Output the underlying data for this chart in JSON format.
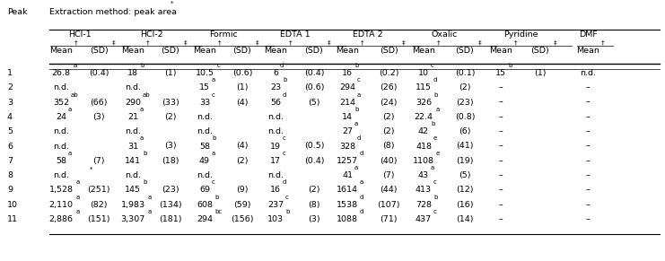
{
  "title": "Extraction method: peak area",
  "title_star": "*",
  "peak_label": "Peak",
  "methods": [
    "HCl-1",
    "HCl-2",
    "Formic",
    "EDTA 1",
    "EDTA 2",
    "Oxalic",
    "Pyridine",
    "DMF"
  ],
  "col_headers_main": [
    "Mean",
    "(SD)",
    "Mean",
    "(SD)",
    "Mean",
    "(SD)",
    "Mean",
    "(SD)",
    "Mean",
    "(SD)",
    "Mean",
    "(SD)",
    "Mean",
    "(SD)",
    "Mean"
  ],
  "col_headers_sup": [
    "†",
    "‡",
    "†",
    "‡",
    "†",
    "‡",
    "†",
    "‡",
    "†",
    "‡",
    "†",
    "‡",
    "†",
    "‡",
    "†"
  ],
  "rows": [
    [
      "1",
      "26.8",
      "a",
      "(0.4)",
      "18",
      "b",
      "(1)",
      "10.5",
      "c",
      "(0.6)",
      "6",
      "d",
      "(0.4)",
      "16",
      "b",
      "(0.2)",
      "10",
      "c",
      "(0.1)",
      "15",
      "b",
      "(1)",
      "n.d.",
      ""
    ],
    [
      "2",
      "n.d.",
      "",
      "",
      "n.d.",
      "",
      "",
      "15",
      "a",
      "(1)",
      "23",
      "b",
      "(0.6)",
      "294",
      "c",
      "(26)",
      "115",
      "d",
      "(2)",
      "–",
      "",
      "",
      "–",
      ""
    ],
    [
      "3",
      "352",
      "ab",
      "(66)",
      "290",
      "ab",
      "(33)",
      "33",
      "c",
      "(4)",
      "56",
      "d",
      "(5)",
      "214",
      "a",
      "(24)",
      "326",
      "b",
      "(23)",
      "–",
      "",
      "",
      "–",
      ""
    ],
    [
      "4",
      "24",
      "a",
      "(3)",
      "21",
      "a",
      "(2)",
      "n.d.",
      "",
      "",
      "n.d.",
      "",
      "",
      "14",
      "b",
      "(2)",
      "22.4",
      "a",
      "(0.8)",
      "–",
      "",
      "",
      "–",
      ""
    ],
    [
      "5",
      "n.d.",
      "",
      "",
      "n.d.",
      "",
      "",
      "n.d.",
      "",
      "",
      "n.d.",
      "",
      "",
      "27",
      "a",
      "(2)",
      "42",
      "b",
      "(6)",
      "–",
      "",
      "",
      "–",
      ""
    ],
    [
      "6",
      "n.d.",
      "",
      "",
      "31",
      "a",
      "(3)",
      "58",
      "b",
      "(4)",
      "19",
      "c",
      "(0.5)",
      "328",
      "d",
      "(8)",
      "418",
      "e",
      "(41)",
      "–",
      "",
      "",
      "–",
      ""
    ],
    [
      "7",
      "58",
      "a",
      "(7)",
      "141",
      "b",
      "(18)",
      "49",
      "a",
      "(2)",
      "17",
      "c",
      "(0.4)",
      "1257",
      "d",
      "(40)",
      "1108",
      "e",
      "(19)",
      "–",
      "",
      "",
      "–",
      ""
    ],
    [
      "8",
      "n.d.",
      "",
      "",
      "n.d.",
      "",
      "",
      "n.d.",
      "",
      "",
      "n.d.",
      "",
      "",
      "41",
      "a",
      "(7)",
      "43",
      "a",
      "(5)",
      "–",
      "",
      "",
      "–",
      ""
    ],
    [
      "9",
      "1,528",
      "a",
      "(251)",
      "145",
      "b",
      "(23)",
      "69",
      "c",
      "(9)",
      "16",
      "d",
      "(2)",
      "1614",
      "a",
      "(44)",
      "413",
      "c",
      "(12)",
      "–",
      "",
      "",
      "–",
      ""
    ],
    [
      "10",
      "2,110",
      "a",
      "(82)",
      "1,983",
      "a",
      "(134)",
      "608",
      "b",
      "(59)",
      "237",
      "c",
      "(8)",
      "1538",
      "d",
      "(107)",
      "728",
      "b",
      "(16)",
      "–",
      "",
      "",
      "–",
      ""
    ],
    [
      "11",
      "2,886",
      "a",
      "(151)",
      "3,307",
      "a",
      "(181)",
      "294",
      "bc",
      "(156)",
      "103",
      "b",
      "(3)",
      "1088",
      "d",
      "(71)",
      "437",
      "c",
      "(14)",
      "–",
      "",
      "",
      "–",
      ""
    ]
  ],
  "bg_color": "white",
  "text_color": "black",
  "fontsize": 6.8,
  "sup_fontsize": 5.0
}
